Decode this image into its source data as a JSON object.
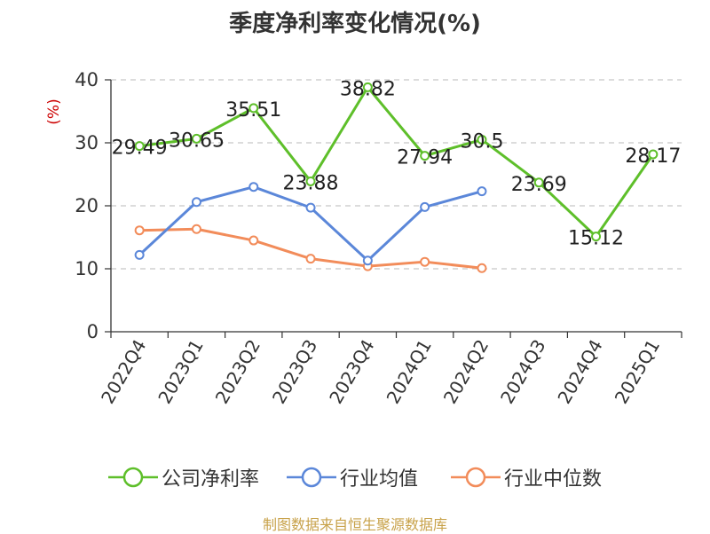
{
  "chart_data": {
    "type": "line",
    "title": "季度净利率变化情况(%)",
    "ylabel": "(%)",
    "xlabel": "",
    "ylim": [
      0,
      40
    ],
    "yticks": [
      0,
      10,
      20,
      30,
      40
    ],
    "grid": true,
    "legend_position": "bottom",
    "categories": [
      "2022Q4",
      "2023Q1",
      "2023Q2",
      "2023Q3",
      "2023Q4",
      "2024Q1",
      "2024Q2",
      "2024Q3",
      "2024Q4",
      "2025Q1"
    ],
    "series": [
      {
        "name": "公司净利率",
        "color": "#5ebf2a",
        "show_labels": true,
        "values": [
          29.49,
          30.65,
          35.51,
          23.88,
          38.82,
          27.94,
          30.5,
          23.69,
          15.12,
          28.17
        ],
        "labels": [
          "29.49",
          "30.65",
          "35.51",
          "23.88",
          "38.82",
          "27.94",
          "30.5",
          "23.69",
          "15.12",
          "28.17"
        ]
      },
      {
        "name": "行业均值",
        "color": "#5b87d9",
        "show_labels": false,
        "values": [
          12.2,
          20.6,
          23.0,
          19.7,
          11.3,
          19.8,
          22.3,
          null,
          null,
          null
        ]
      },
      {
        "name": "行业中位数",
        "color": "#f28c5a",
        "show_labels": false,
        "values": [
          16.1,
          16.3,
          14.5,
          11.6,
          10.4,
          11.1,
          10.1,
          null,
          null,
          null
        ]
      }
    ]
  },
  "source": "制图数据来自恒生聚源数据库"
}
